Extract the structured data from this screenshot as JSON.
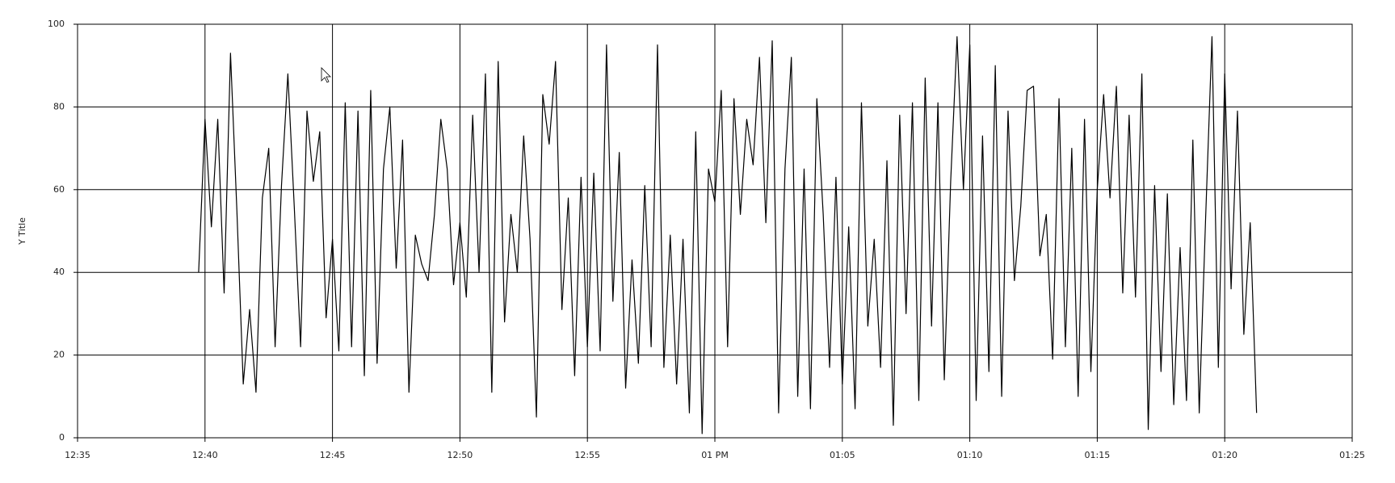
{
  "chart_data": {
    "type": "line",
    "y_label": "Y Title",
    "x": [
      759.75,
      760,
      760.25,
      760.5,
      760.75,
      761,
      761.25,
      761.5,
      761.75,
      762,
      762.25,
      762.5,
      762.75,
      763,
      763.25,
      763.5,
      763.75,
      764,
      764.25,
      764.5,
      764.75,
      765,
      765.25,
      765.5,
      765.75,
      766,
      766.25,
      766.5,
      766.75,
      767,
      767.25,
      767.5,
      767.75,
      768,
      768.25,
      768.5,
      768.75,
      769,
      769.25,
      769.5,
      769.75,
      770,
      770.25,
      770.5,
      770.75,
      771,
      771.25,
      771.5,
      771.75,
      772,
      772.25,
      772.5,
      772.75,
      773,
      773.25,
      773.5,
      773.75,
      774,
      774.25,
      774.5,
      774.75,
      775,
      775.25,
      775.5,
      775.75,
      776,
      776.25,
      776.5,
      776.75,
      777,
      777.25,
      777.5,
      777.75,
      778,
      778.25,
      778.5,
      778.75,
      779,
      779.25,
      779.5,
      779.75,
      780,
      780.25,
      780.5,
      780.75,
      781,
      781.25,
      781.5,
      781.75,
      782,
      782.25,
      782.5,
      782.75,
      783,
      783.25,
      783.5,
      783.75,
      784,
      784.25,
      784.5,
      784.75,
      785,
      785.25,
      785.5,
      785.75,
      786,
      786.25,
      786.5,
      786.75,
      787,
      787.25,
      787.5,
      787.75,
      788,
      788.25,
      788.5,
      788.75,
      789,
      789.25,
      789.5,
      789.75,
      790,
      790.25,
      790.5,
      790.75,
      791,
      791.25,
      791.5,
      791.75,
      792,
      792.25,
      792.5,
      792.75,
      793,
      793.25,
      793.5,
      793.75,
      794,
      794.25,
      794.5,
      794.75,
      795,
      795.25,
      795.5,
      795.75,
      796,
      796.25,
      796.5,
      796.75,
      797,
      797.25,
      797.5,
      797.75,
      798,
      798.25,
      798.5,
      798.75,
      799,
      799.25,
      799.5,
      799.75,
      800,
      800.25,
      800.5,
      800.75,
      801,
      801.25
    ],
    "series": [
      {
        "color": "#000000",
        "values": [
          40,
          77,
          51,
          77,
          35,
          93,
          55,
          13,
          31,
          11,
          58,
          70,
          22,
          61,
          88,
          56,
          22,
          79,
          62,
          74,
          29,
          48,
          21,
          81,
          22,
          79,
          15,
          84,
          18,
          65,
          80,
          41,
          72,
          11,
          49,
          42,
          38,
          54,
          77,
          65,
          37,
          52,
          34,
          78,
          40,
          88,
          11,
          91,
          28,
          54,
          40,
          73,
          48,
          5,
          83,
          71,
          91,
          31,
          58,
          15,
          63,
          22,
          64,
          21,
          95,
          33,
          69,
          12,
          43,
          18,
          61,
          22,
          95,
          17,
          49,
          13,
          48,
          6,
          74,
          1,
          65,
          57,
          84,
          22,
          82,
          54,
          77,
          66,
          92,
          52,
          96,
          6,
          65,
          92,
          10,
          65,
          7,
          82,
          54,
          17,
          63,
          13,
          51,
          7,
          81,
          27,
          48,
          17,
          67,
          3,
          78,
          30,
          81,
          9,
          87,
          27,
          81,
          14,
          62,
          97,
          60,
          95,
          9,
          73,
          16,
          90,
          10,
          79,
          38,
          56,
          84,
          85,
          44,
          54,
          19,
          82,
          22,
          70,
          10,
          77,
          16,
          60,
          83,
          58,
          85,
          35,
          78,
          34,
          88,
          2,
          61,
          16,
          59,
          8,
          46,
          9,
          72,
          6,
          53,
          97,
          17,
          88,
          36,
          79,
          25,
          52,
          6
        ]
      }
    ],
    "xlim": [
      755,
      805
    ],
    "xticks": [
      {
        "value": 755,
        "label": "12:35"
      },
      {
        "value": 760,
        "label": "12:40"
      },
      {
        "value": 765,
        "label": "12:45"
      },
      {
        "value": 770,
        "label": "12:50"
      },
      {
        "value": 775,
        "label": "12:55"
      },
      {
        "value": 780,
        "label": "01 PM"
      },
      {
        "value": 785,
        "label": "01:05"
      },
      {
        "value": 790,
        "label": "01:10"
      },
      {
        "value": 795,
        "label": "01:15"
      },
      {
        "value": 800,
        "label": "01:20"
      },
      {
        "value": 805,
        "label": "01:25"
      }
    ],
    "ylim": [
      0,
      100
    ],
    "yticks": [
      0,
      20,
      40,
      60,
      80,
      100
    ],
    "grid": true
  }
}
